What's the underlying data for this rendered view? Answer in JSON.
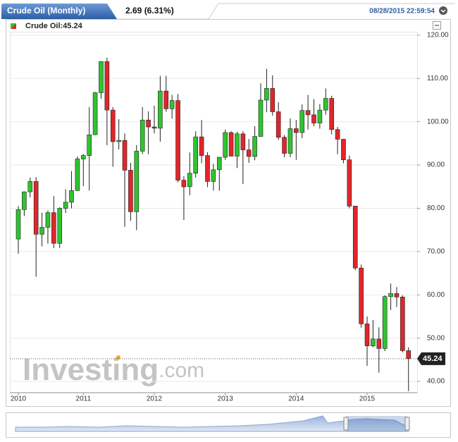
{
  "header": {
    "title": "Crude Oil (Monthly)",
    "change": "2.69 (6.31%)",
    "datetime": "08/28/2015 22:59:54"
  },
  "chart_data": {
    "type": "candlestick",
    "legend": "Crude Oil:45.24",
    "watermark": "Investing",
    "watermark_suffix": ".com",
    "last_price": {
      "value": 45.24,
      "label": "45.24"
    },
    "categories": [
      "2010",
      null,
      null,
      null,
      null,
      null,
      null,
      null,
      null,
      null,
      null,
      "2011",
      null,
      null,
      null,
      null,
      null,
      null,
      null,
      null,
      null,
      null,
      null,
      "2012",
      null,
      null,
      null,
      null,
      null,
      null,
      null,
      null,
      null,
      null,
      null,
      "2013",
      null,
      null,
      null,
      null,
      null,
      null,
      null,
      null,
      null,
      null,
      null,
      "2014",
      null,
      null,
      null,
      null,
      null,
      null,
      null,
      null,
      null,
      null,
      null,
      "2015",
      null,
      null,
      null,
      null,
      null,
      null,
      null
    ],
    "open": [
      72.9,
      79.7,
      83.8,
      86.2,
      74.0,
      75.6,
      79.0,
      71.9,
      80.0,
      81.4,
      84.1,
      91.4,
      92.2,
      97.0,
      106.7,
      113.9,
      102.7,
      95.4,
      95.7,
      88.8,
      79.2,
      93.2,
      100.4,
      98.8,
      98.5,
      107.1,
      103.0,
      104.9,
      86.5,
      85.0,
      88.1,
      96.5,
      92.2,
      86.2,
      88.9,
      91.8,
      97.5,
      92.05,
      97.2,
      93.5,
      91.97,
      96.6,
      105.0,
      107.7,
      102.3,
      96.4,
      92.7,
      98.4,
      97.5,
      102.6,
      101.6,
      99.7,
      102.7,
      105.4,
      98.2,
      95.96,
      91.2,
      80.5,
      66.2,
      53.3,
      48.2,
      49.8,
      47.6,
      59.6,
      60.3,
      59.5,
      47.1
    ],
    "high": [
      80.5,
      83.9,
      87.1,
      87.2,
      79.0,
      79.5,
      82.8,
      80.2,
      84.4,
      88.6,
      92.0,
      92.6,
      103.4,
      106.9,
      114.0,
      114.8,
      103.4,
      100.6,
      97.3,
      90.5,
      94.6,
      103.4,
      102.4,
      103.7,
      110.6,
      110.6,
      106.2,
      106.4,
      87.4,
      92.9,
      97.8,
      100.4,
      93.0,
      90.3,
      91.1,
      98.2,
      97.8,
      97.7,
      97.8,
      96.0,
      99.0,
      108.9,
      112.2,
      110.7,
      104.5,
      96.9,
      100.8,
      100.4,
      104.0,
      106.2,
      105.2,
      104.1,
      107.7,
      106.0,
      98.8,
      96.0,
      92.2,
      80.6,
      67.0,
      55.0,
      54.2,
      52.5,
      59.9,
      62.6,
      61.8,
      59.9,
      47.9
    ],
    "low": [
      69.5,
      78.2,
      82.5,
      64.2,
      71.2,
      71.8,
      70.8,
      70.8,
      78.9,
      80.0,
      84.0,
      85.1,
      84.1,
      96.9,
      105.3,
      94.6,
      89.6,
      93.6,
      75.7,
      77.1,
      74.95,
      92.5,
      92.5,
      97.3,
      95.4,
      102.3,
      100.7,
      86.0,
      77.3,
      83.0,
      87.1,
      90.4,
      84.9,
      84.1,
      84.05,
      91.2,
      92.0,
      89.3,
      85.6,
      90.5,
      91.1,
      96.7,
      102.2,
      101.4,
      95.8,
      91.8,
      91.8,
      91.2,
      96.2,
      98.2,
      99.0,
      98.4,
      101.6,
      97.1,
      92.5,
      90.4,
      80.0,
      65.7,
      52.4,
      43.6,
      47.9,
      42.0,
      47.0,
      56.5,
      57.2,
      46.7,
      37.75
    ],
    "close": [
      79.7,
      83.8,
      86.2,
      74.0,
      75.6,
      79.0,
      71.9,
      80.0,
      81.4,
      84.1,
      91.4,
      92.2,
      96.97,
      106.7,
      113.9,
      102.7,
      95.4,
      95.7,
      88.8,
      79.2,
      93.2,
      100.4,
      98.8,
      98.5,
      107.1,
      103.0,
      104.9,
      86.5,
      84.96,
      88.1,
      96.5,
      92.2,
      86.2,
      88.9,
      91.8,
      97.5,
      92.05,
      97.2,
      93.5,
      91.97,
      96.6,
      105.0,
      107.7,
      102.3,
      96.4,
      92.7,
      98.4,
      97.5,
      102.6,
      101.6,
      99.7,
      102.7,
      105.4,
      98.2,
      95.96,
      91.2,
      80.5,
      66.2,
      53.3,
      48.2,
      49.8,
      47.6,
      59.6,
      60.3,
      59.5,
      47.1,
      45.24
    ],
    "up_color": "#2ec42e",
    "down_color": "#e0262b",
    "ylim": [
      37.4,
      120.8
    ],
    "yticks": [
      {
        "value": 40,
        "label": "40.00"
      },
      {
        "value": 50,
        "label": "50.00"
      },
      {
        "value": 60,
        "label": "60.00"
      },
      {
        "value": 70,
        "label": "70.00"
      },
      {
        "value": 80,
        "label": "80.00"
      },
      {
        "value": 90,
        "label": "90.00"
      },
      {
        "value": 100,
        "label": "100.00"
      },
      {
        "value": 110,
        "label": "110.00"
      },
      {
        "value": 120,
        "label": "120.00"
      }
    ],
    "grid": true
  }
}
